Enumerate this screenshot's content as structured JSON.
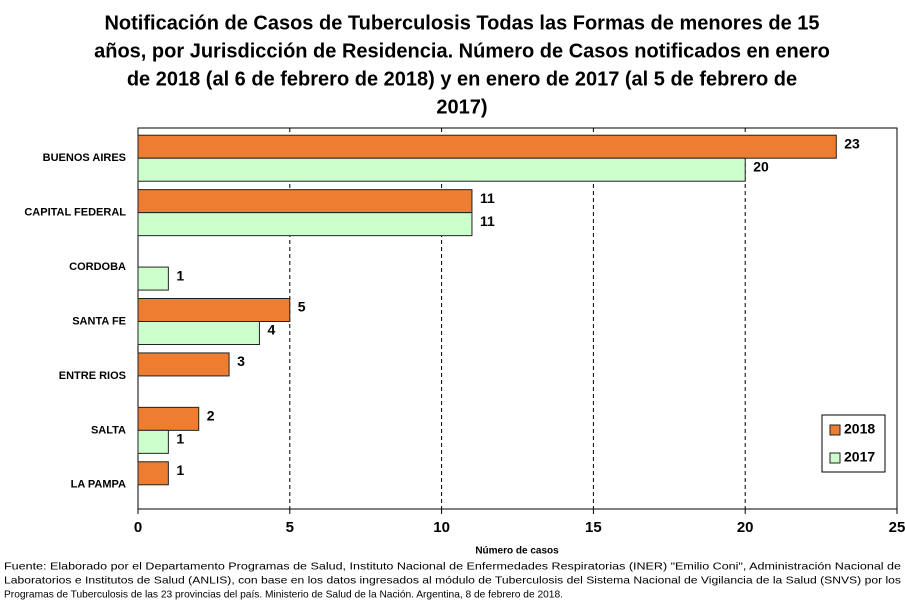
{
  "chart_data": {
    "type": "hbar",
    "title": [
      "Notificación de Casos de Tuberculosis Todas las Formas de menores de 15",
      "años, por Jurisdicción de Residencia. Número de Casos notificados en enero",
      "de 2018 (al 6 de febrero de 2018) y en enero de 2017 (al 5 de febrero de",
      "2017)"
    ],
    "categories": [
      "BUENOS AIRES",
      "CAPITAL FEDERAL",
      "CORDOBA",
      "SANTA FE",
      "ENTRE RIOS",
      "SALTA",
      "LA PAMPA"
    ],
    "series": [
      {
        "name": "2018",
        "color": "#ed7d31",
        "values": [
          23,
          11,
          null,
          5,
          3,
          2,
          1
        ]
      },
      {
        "name": "2017",
        "color": "#ccffcc",
        "values": [
          20,
          11,
          1,
          4,
          null,
          1,
          null
        ]
      }
    ],
    "xlim": [
      0,
      25
    ],
    "xticks": [
      0,
      5,
      10,
      15,
      20,
      25
    ],
    "grid": true,
    "legend": "lower right",
    "xlabel": "Número de casos",
    "footnote": [
      "Fuente: Elaborado por el Departamento Programas de Salud, Instituto Nacional de Enfermedades Respiratorias (INER) \"Emilio Coni\", Administración Nacional de",
      "Laboratorios e Institutos de Salud (ANLIS), con base en los datos ingresados al módulo de Tuberculosis del Sistema Nacional de Vigilancia de la Salud (SNVS) por los",
      "Programas de Tuberculosis de las 23 provincias del país. Ministerio de Salud de la Nación. Argentina,  8 de febrero de 2018."
    ]
  }
}
